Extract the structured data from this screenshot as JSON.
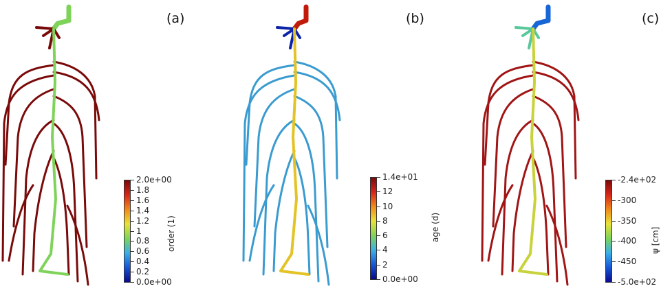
{
  "panels": [
    {
      "label": "(a)",
      "colorbar": {
        "title": "order (1)",
        "ticks": [
          "2.0e+00",
          "1.8",
          "1.6",
          "1.4",
          "1.2",
          "1",
          "0.8",
          "0.6",
          "0.4",
          "0.2",
          "0.0e+00"
        ]
      },
      "colors": {
        "stem": "#7fd35a",
        "tap": "#7fd35a",
        "lat": "#7a0a0a",
        "top": "#3f86c8"
      }
    },
    {
      "label": "(b)",
      "colorbar": {
        "title": "age (d)",
        "ticks": [
          "1.4e+01",
          "12",
          "10",
          "8",
          "6",
          "4",
          "2",
          "0.0e+00"
        ]
      },
      "colors": {
        "stem": "#c21a0a",
        "tap": "#e3c326",
        "lat": "#3a9bd0",
        "top": "#0b23a6"
      }
    },
    {
      "label": "(c)",
      "colorbar": {
        "title": "ψ [cm]",
        "ticks": [
          "-2.4e+02",
          "-300",
          "-350",
          "-400",
          "-450",
          "-5.0e+02"
        ]
      },
      "colors": {
        "stem": "#1866d6",
        "tap": "#c8d23a",
        "lat": "#a01515",
        "top": "#56c89a"
      }
    }
  ]
}
